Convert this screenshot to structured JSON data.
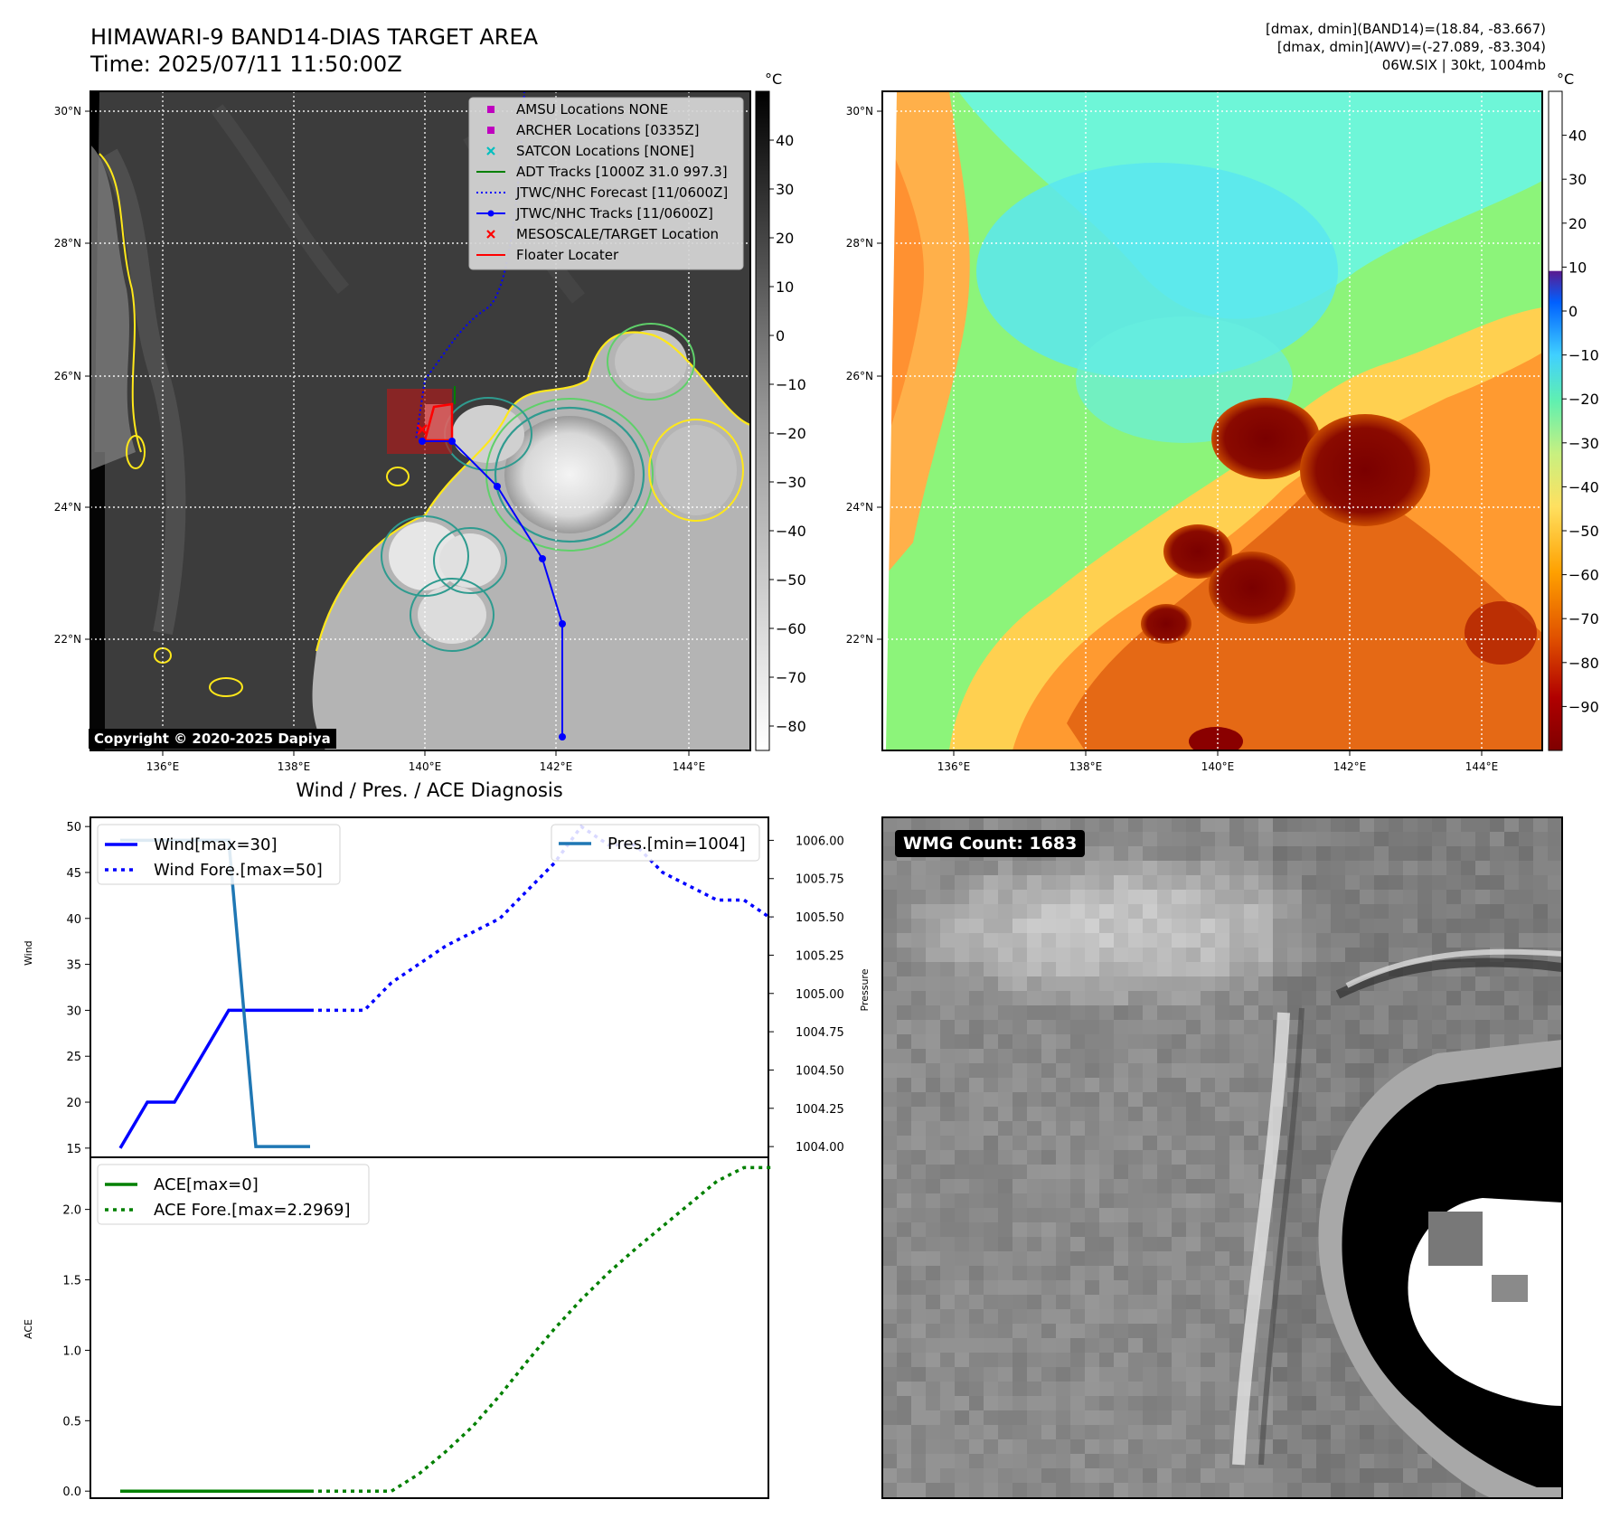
{
  "header": {
    "title_line1": "HIMAWARI-9 BAND14-DIAS TARGET AREA",
    "title_line2": "Time: 2025/07/11 11:50:00Z",
    "right_line1": "[dmax, dmin](BAND14)=(18.84, -83.667)",
    "right_line2": "[dmax, dmin](AWV)=(-27.089, -83.304)",
    "right_line3": "06W.SIX | 30kt, 1004mb"
  },
  "map_axes": {
    "lon_labels": [
      "136°E",
      "138°E",
      "140°E",
      "142°E",
      "144°E"
    ],
    "lat_labels": [
      "30°N",
      "28°N",
      "26°N",
      "24°N",
      "22°N"
    ]
  },
  "colorbar_left": {
    "unit": "°C",
    "ticks": [
      "40",
      "30",
      "20",
      "10",
      "0",
      "−10",
      "−20",
      "−30",
      "−40",
      "−50",
      "−60",
      "−70",
      "−80"
    ]
  },
  "colorbar_right": {
    "unit": "°C",
    "ticks": [
      "40",
      "30",
      "20",
      "10",
      "0",
      "−10",
      "−20",
      "−30",
      "−40",
      "−50",
      "−60",
      "−70",
      "−80",
      "−90"
    ]
  },
  "map_legend": [
    {
      "label": "AMSU Locations NONE",
      "marker": "square",
      "color": "#bf00bf"
    },
    {
      "label": "ARCHER Locations [0335Z]",
      "marker": "square",
      "color": "#bf00bf"
    },
    {
      "label": "SATCON Locations [NONE]",
      "marker": "x",
      "color": "#00bfbf"
    },
    {
      "label": "ADT Tracks [1000Z 31.0 997.3]",
      "marker": "line",
      "color": "#008000"
    },
    {
      "label": "JTWC/NHC Forecast [11/0600Z]",
      "marker": "dotted",
      "color": "#0000ff"
    },
    {
      "label": "JTWC/NHC Tracks [11/0600Z]",
      "marker": "line-dot",
      "color": "#0000ff"
    },
    {
      "label": "MESOSCALE/TARGET Location",
      "marker": "x",
      "color": "#ff0000"
    },
    {
      "label": "Floater Locater",
      "marker": "line",
      "color": "#ff0000"
    }
  ],
  "copyright": "Copyright © 2020-2025 Dapiya",
  "diag_title": "Wind / Pres. / ACE Diagnosis",
  "wmg_label": "WMG Count: 1683",
  "chart_data": [
    {
      "type": "line",
      "title": "Wind / Pres. / ACE Diagnosis",
      "ylabel": "Wind",
      "y2label": "Pressure",
      "x": [
        0,
        1,
        2,
        3,
        4,
        5,
        6,
        7,
        8,
        9,
        10,
        11,
        12,
        13,
        14,
        15,
        16,
        17,
        18,
        19,
        20,
        21,
        22,
        23,
        24
      ],
      "ylim": [
        14,
        51
      ],
      "y2lim": [
        1003.93,
        1006.15
      ],
      "yticks": [
        "15",
        "20",
        "25",
        "30",
        "35",
        "40",
        "45",
        "50"
      ],
      "y2ticks": [
        "1004.00",
        "1004.25",
        "1004.50",
        "1004.75",
        "1005.00",
        "1005.25",
        "1005.50",
        "1005.75",
        "1006.00"
      ],
      "series": [
        {
          "name": "Wind[max=30]",
          "axis": "left",
          "color": "#0000ff",
          "style": "solid",
          "x": [
            0,
            1,
            2,
            4,
            5,
            6,
            7
          ],
          "values": [
            15,
            20,
            20,
            30,
            30,
            30,
            30
          ]
        },
        {
          "name": "Wind Fore.[max=50]",
          "axis": "left",
          "color": "#0000ff",
          "style": "dotted",
          "x": [
            7,
            9,
            10,
            12,
            14,
            16,
            17,
            18,
            19,
            20,
            22,
            23,
            24
          ],
          "values": [
            30,
            30,
            33,
            37,
            40,
            46,
            50,
            48,
            48,
            45,
            42,
            42,
            40
          ]
        },
        {
          "name": "Pres.[min=1004]",
          "axis": "right",
          "color": "#1f77b4",
          "style": "solid",
          "x": [
            0,
            1,
            2,
            4,
            5,
            6,
            7
          ],
          "values": [
            1006,
            1006,
            1006,
            1006,
            1004,
            1004,
            1004
          ]
        }
      ]
    },
    {
      "type": "line",
      "ylabel": "ACE",
      "x": [
        0,
        1,
        2,
        3,
        4,
        5,
        6,
        7,
        8,
        9,
        10,
        11,
        12,
        13,
        14,
        15,
        16,
        17,
        18,
        19,
        20,
        21,
        22,
        23,
        24
      ],
      "ylim": [
        -0.05,
        2.37
      ],
      "yticks": [
        "0.0",
        "0.5",
        "1.0",
        "1.5",
        "2.0"
      ],
      "series": [
        {
          "name": "ACE[max=0]",
          "color": "#008000",
          "style": "solid",
          "x": [
            0,
            7
          ],
          "values": [
            0,
            0
          ]
        },
        {
          "name": "ACE Fore.[max=2.2969]",
          "color": "#008000",
          "style": "dotted",
          "x": [
            7,
            8,
            9,
            10,
            11,
            12,
            13,
            14,
            15,
            16,
            17,
            18,
            19,
            20,
            21,
            22,
            23,
            24
          ],
          "values": [
            0,
            0,
            0,
            0,
            0.12,
            0.28,
            0.46,
            0.68,
            0.92,
            1.15,
            1.36,
            1.55,
            1.72,
            1.88,
            2.04,
            2.2,
            2.297,
            2.297
          ]
        }
      ]
    }
  ]
}
